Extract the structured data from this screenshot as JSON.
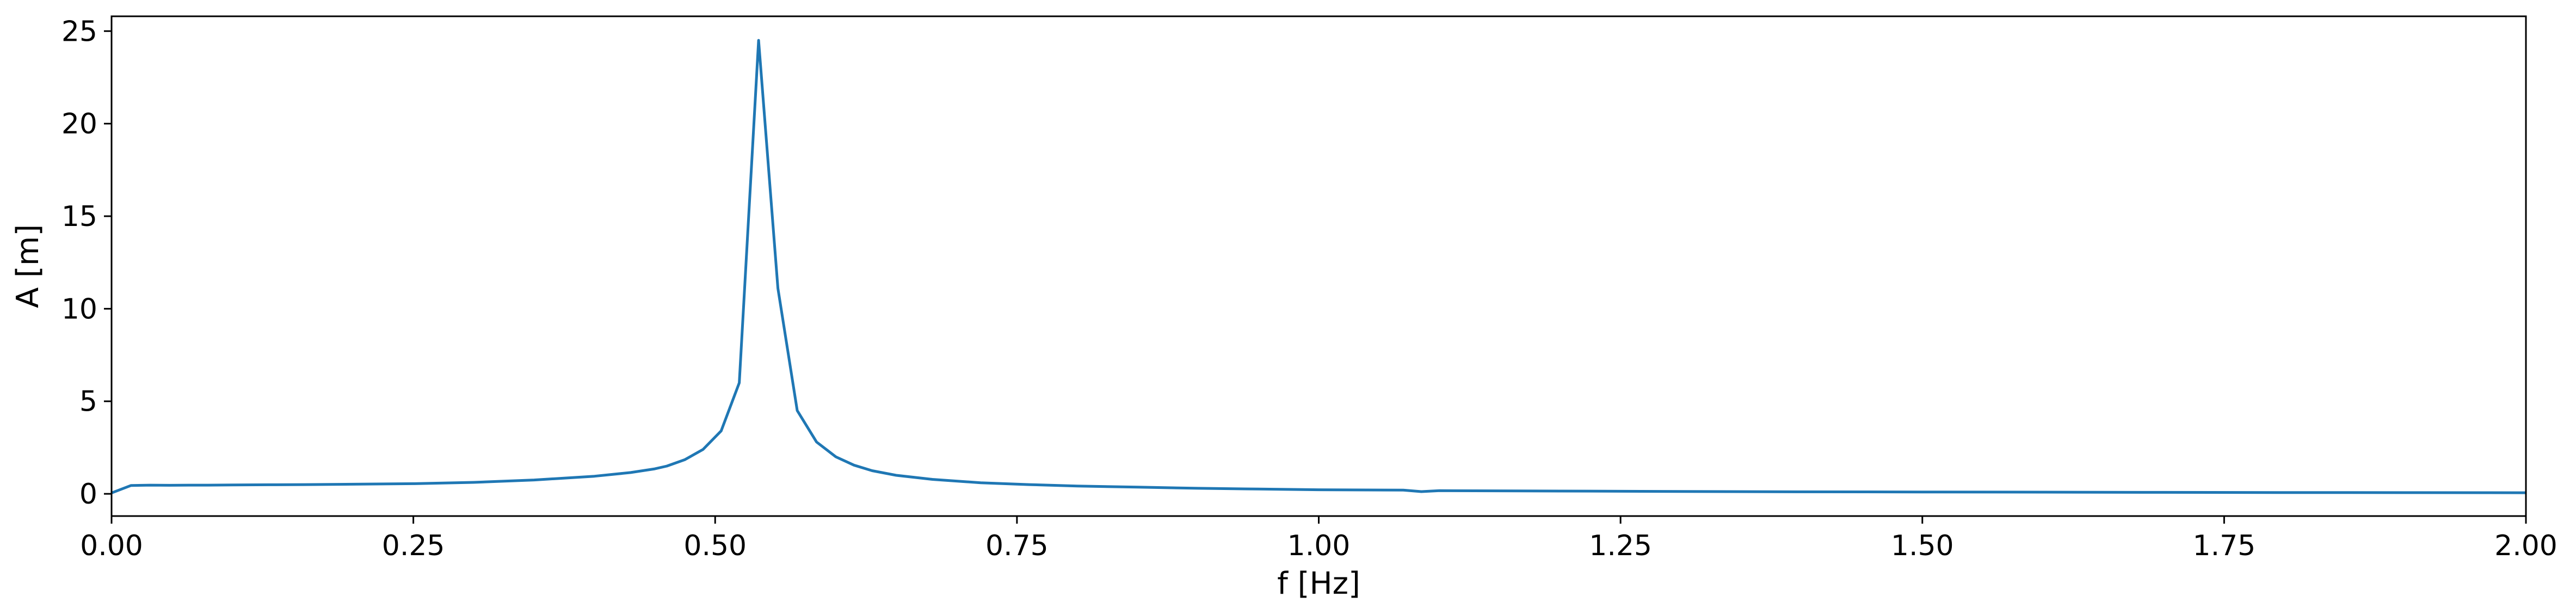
{
  "chart_data": {
    "type": "line",
    "title": "",
    "xlabel": "f [Hz]",
    "ylabel": "A [m]",
    "xlim": [
      0.0,
      2.0
    ],
    "ylim": [
      -1.2,
      25.8
    ],
    "grid": false,
    "x_ticks": [
      "0.00",
      "0.25",
      "0.50",
      "0.75",
      "1.00",
      "1.25",
      "1.50",
      "1.75",
      "2.00"
    ],
    "x_tick_values": [
      0.0,
      0.25,
      0.5,
      0.75,
      1.0,
      1.25,
      1.5,
      1.75,
      2.0
    ],
    "y_ticks": [
      "0",
      "5",
      "10",
      "15",
      "20",
      "25"
    ],
    "y_tick_values": [
      0,
      5,
      10,
      15,
      20,
      25
    ],
    "series": [
      {
        "color": "#1f77b4",
        "x": [
          0.0,
          0.016,
          0.032,
          0.048,
          0.064,
          0.08,
          0.1,
          0.13,
          0.16,
          0.2,
          0.25,
          0.3,
          0.35,
          0.4,
          0.43,
          0.45,
          0.46,
          0.475,
          0.49,
          0.505,
          0.52,
          0.536,
          0.552,
          0.568,
          0.584,
          0.6,
          0.615,
          0.63,
          0.65,
          0.68,
          0.72,
          0.76,
          0.8,
          0.85,
          0.9,
          0.95,
          1.0,
          1.07,
          1.085,
          1.1,
          1.2,
          1.3,
          1.4,
          1.5,
          1.6,
          1.7,
          1.8,
          1.9,
          2.0
        ],
        "y": [
          0.05,
          0.45,
          0.47,
          0.46,
          0.47,
          0.47,
          0.48,
          0.49,
          0.5,
          0.52,
          0.55,
          0.62,
          0.75,
          0.95,
          1.15,
          1.35,
          1.5,
          1.85,
          2.4,
          3.4,
          6.0,
          24.5,
          11.1,
          4.5,
          2.8,
          2.0,
          1.55,
          1.25,
          1.0,
          0.78,
          0.6,
          0.5,
          0.42,
          0.36,
          0.3,
          0.26,
          0.22,
          0.2,
          0.12,
          0.17,
          0.15,
          0.13,
          0.11,
          0.1,
          0.09,
          0.08,
          0.07,
          0.065,
          0.06
        ]
      }
    ]
  }
}
